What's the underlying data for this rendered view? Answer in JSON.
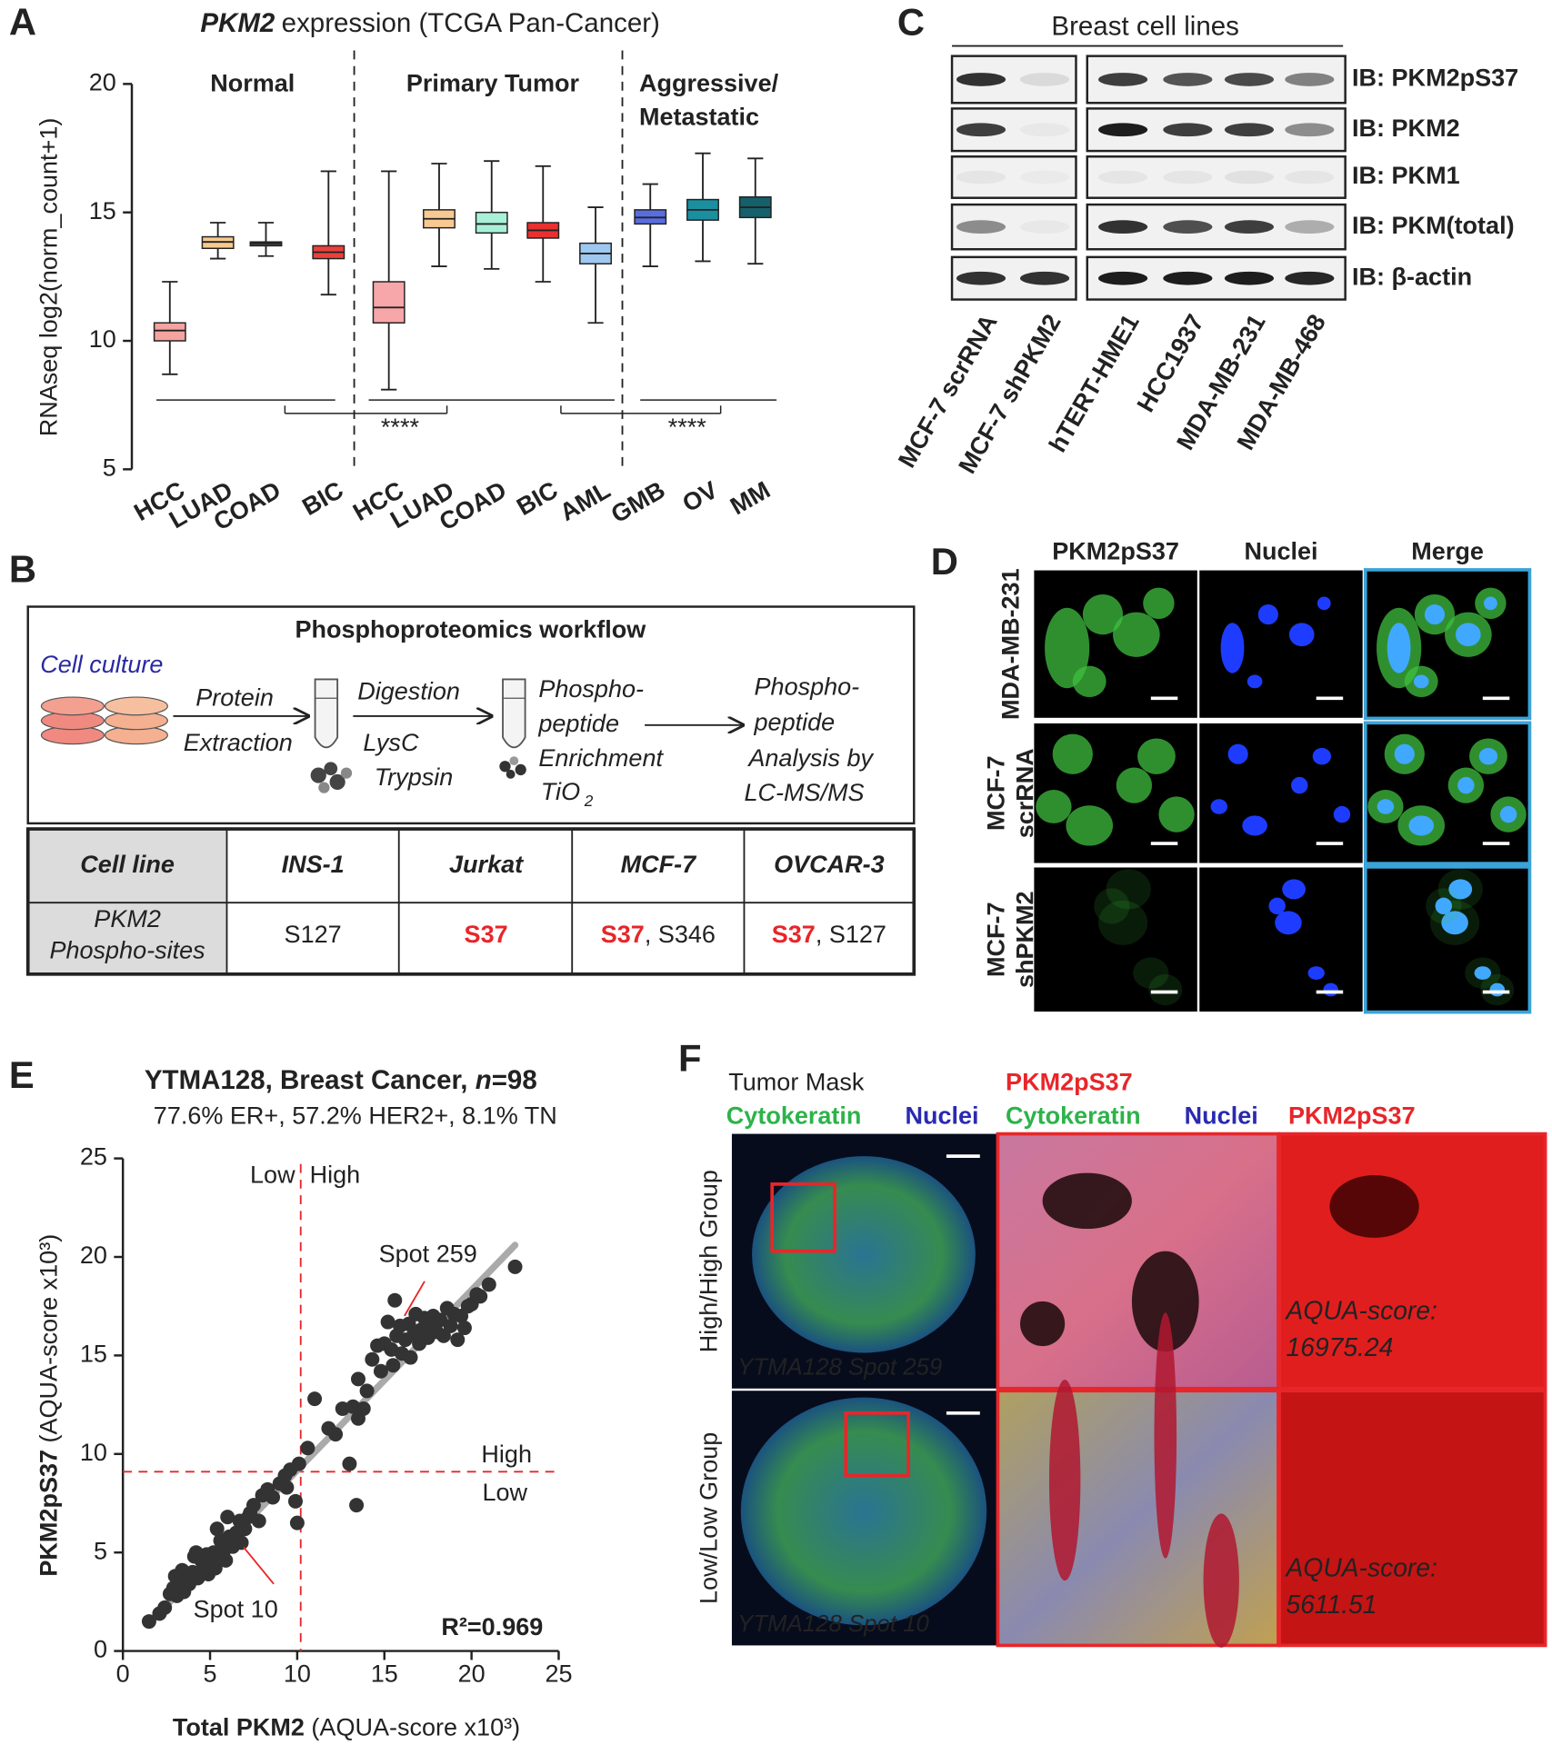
{
  "panel_labels": [
    "A",
    "B",
    "C",
    "D",
    "E",
    "F"
  ],
  "chart_data": [
    {
      "type": "box",
      "title_gene": "PKM2",
      "title": "expression (TCGA Pan-Cancer)",
      "ylabel": "RNAseq log2(norm_count+1)",
      "categories": [
        "HCC",
        "LUAD",
        "COAD",
        "BIC",
        "HCC",
        "LUAD",
        "COAD",
        "BIC",
        "AML",
        "GMB",
        "OV",
        "MM"
      ],
      "groups": [
        [
          "Normal"
        ],
        [
          "Primary Tumor"
        ],
        [
          "Aggressive/",
          "Metastatic"
        ]
      ],
      "min": [
        8.7,
        13.2,
        13.3,
        11.8,
        8.1,
        12.9,
        12.8,
        12.3,
        10.7,
        12.9,
        13.1,
        13.0
      ],
      "q1": [
        10.0,
        13.6,
        13.7,
        13.2,
        10.7,
        14.4,
        14.2,
        14.0,
        13.0,
        14.55,
        14.7,
        14.8
      ],
      "median": [
        10.4,
        13.85,
        13.8,
        13.45,
        11.3,
        14.75,
        14.55,
        14.3,
        13.4,
        14.8,
        15.1,
        15.2
      ],
      "q3": [
        10.7,
        14.05,
        13.85,
        13.7,
        12.3,
        15.1,
        15.0,
        14.6,
        13.8,
        15.1,
        15.5,
        15.6
      ],
      "max": [
        12.3,
        14.6,
        14.6,
        16.6,
        16.6,
        16.9,
        17.0,
        16.8,
        15.2,
        16.1,
        17.3,
        17.1
      ],
      "colors": [
        "#f4a3a0",
        "#f6c98e",
        "#444444",
        "#e8413c",
        "#f7a6aa",
        "#f8c990",
        "#a9f0d8",
        "#e8312f",
        "#9ec8f0",
        "#5a6de0",
        "#1a8fa0",
        "#15606a"
      ],
      "significance": [
        "****",
        "****"
      ],
      "ylim": [
        5,
        20
      ],
      "yticks": [
        5,
        10,
        15,
        20
      ]
    },
    {
      "type": "scatter",
      "title_parts": [
        "YTMA128, Breast Cancer, ",
        "n",
        "=98"
      ],
      "subtitle": "77.6% ER+, 57.2% HER2+, 8.1% TN",
      "xlabel": [
        "Total PKM2",
        " (AQUA-score x10³)"
      ],
      "ylabel": [
        "PKM2pS37",
        " (AQUA-score x10³)"
      ],
      "x": [
        1.5,
        2.4,
        2.7,
        2.9,
        3.1,
        3.3,
        3.5,
        3.6,
        3.8,
        4.0,
        4.1,
        4.3,
        4.5,
        4.6,
        4.8,
        4.9,
        5.0,
        5.2,
        5.3,
        5.5,
        5.6,
        5.8,
        5.9,
        6.1,
        6.3,
        6.5,
        6.7,
        6.8,
        7.0,
        7.2,
        7.5,
        7.8,
        4.2,
        3.4,
        5.4,
        6.0,
        8.3,
        8.6,
        9.0,
        9.3,
        9.6,
        9.9,
        10.1,
        10.0,
        10.6,
        11.0,
        11.8,
        12.2,
        12.6,
        13.2,
        13.4,
        13.0,
        13.5,
        13.5,
        13.8,
        14.3,
        14.6,
        14.8,
        15.0,
        15.2,
        15.4,
        15.5,
        15.7,
        15.9,
        16.0,
        16.2,
        16.4,
        16.5,
        16.7,
        16.8,
        17.0,
        17.1,
        17.3,
        17.5,
        17.6,
        17.8,
        18.0,
        18.2,
        18.4,
        18.6,
        18.8,
        19.0,
        19.2,
        19.4,
        19.6,
        20.0,
        20.3,
        20.5,
        21.0,
        22.5,
        15.6,
        2.1,
        3.0,
        7.3,
        8.0,
        9.4,
        14.0,
        19.8
      ],
      "values": [
        1.5,
        2.2,
        2.9,
        3.2,
        2.8,
        3.5,
        3.0,
        3.9,
        3.4,
        4.0,
        4.8,
        3.7,
        4.6,
        4.2,
        4.9,
        3.9,
        4.5,
        5.0,
        4.2,
        4.9,
        5.6,
        5.1,
        4.6,
        5.8,
        5.3,
        6.0,
        6.6,
        5.5,
        6.2,
        6.8,
        7.4,
        6.6,
        5.0,
        4.1,
        6.2,
        6.8,
        8.2,
        7.8,
        8.5,
        8.9,
        9.2,
        7.6,
        9.5,
        6.5,
        10.3,
        12.8,
        11.3,
        11.0,
        12.3,
        12.4,
        7.4,
        9.5,
        13.8,
        11.8,
        12.3,
        14.8,
        15.5,
        14.2,
        15.6,
        16.7,
        15.3,
        14.5,
        16.0,
        16.5,
        15.1,
        15.8,
        16.6,
        14.9,
        16.1,
        17.1,
        15.6,
        16.3,
        16.9,
        15.9,
        16.6,
        17.0,
        16.2,
        16.8,
        16.0,
        17.4,
        16.5,
        17.1,
        15.8,
        17.0,
        16.4,
        17.6,
        18.1,
        18.0,
        18.6,
        19.5,
        17.8,
        1.9,
        3.8,
        7.0,
        7.9,
        8.3,
        13.2,
        17.5
      ],
      "color": "#333333",
      "trend": {
        "x": [
          1.5,
          22.5
        ],
        "y": [
          1.4,
          20.6
        ],
        "color": "#aaaaaa"
      },
      "thresholds": {
        "x": 10.2,
        "y": 9.1,
        "color": "#e8262a"
      },
      "threshold_labels": {
        "x_low": "Low",
        "x_high": "High",
        "y_high": "High",
        "y_low": "Low"
      },
      "annotations": [
        "Spot 259",
        "Spot 10"
      ],
      "r2": "R²=0.969",
      "xlim": [
        0,
        25
      ],
      "xticks": [
        0,
        5,
        10,
        15,
        20,
        25
      ],
      "ylim": [
        0,
        25
      ],
      "yticks": [
        0,
        5,
        10,
        15,
        20,
        25
      ]
    }
  ],
  "workflow": {
    "title": "Phosphoproteomics workflow",
    "cell_culture": "Cell culture",
    "extraction": [
      "Protein",
      "Extraction"
    ],
    "digestion": [
      "Digestion",
      "LysC",
      "Trypsin"
    ],
    "enrichment": [
      "Phospho-",
      "peptide",
      "Enrichment"
    ],
    "tio": "TiO",
    "tio_sub": "2",
    "analysis": [
      "Phospho-",
      "peptide",
      "Analysis by",
      "LC-MS/MS"
    ]
  },
  "table": {
    "header": [
      "Cell line",
      "INS-1",
      "Jurkat",
      "MCF-7",
      "OVCAR-3"
    ],
    "row_label": [
      "PKM2",
      "Phospho-sites"
    ],
    "cells": [
      [
        {
          "text": "S127"
        }
      ],
      [
        {
          "text": "S37",
          "highlight": true
        }
      ],
      [
        {
          "text": "S37",
          "highlight": true
        },
        {
          "text": ", S346"
        }
      ],
      [
        {
          "text": "S37",
          "highlight": true
        },
        {
          "text": ", S127"
        }
      ]
    ],
    "highlight_color": "#e8262a"
  },
  "blot": {
    "title": "Breast cell lines",
    "rows": [
      "IB: PKM2pS37",
      "IB: PKM2",
      "IB: PKM1",
      "IB: PKM(total)",
      "IB: β-actin"
    ],
    "lanes": [
      "MCF-7 scrRNA",
      "MCF-7 shPKM2",
      "hTERT-HME1",
      "HCC1937",
      "MDA-MB-231",
      "MDA-MB-468"
    ]
  },
  "imaging": {
    "columns": [
      {
        "text": "PKM2pS37",
        "color": "#2db34a"
      },
      {
        "text": "Nuclei",
        "color": "#2a2ab0"
      },
      {
        "text": "Merge",
        "color": "#3aa3d8"
      }
    ],
    "rows": [
      [
        "MDA-MB-231"
      ],
      [
        "MCF-7",
        "scrRNA"
      ],
      [
        "MCF-7",
        "shPKM2"
      ]
    ]
  },
  "tissue": {
    "col1": [
      "Tumor Mask",
      "Cytokeratin",
      "Nuclei"
    ],
    "col2": [
      "PKM2pS37",
      "Cytokeratin",
      "Nuclei"
    ],
    "col3": "PKM2pS37",
    "rows": [
      "High/High Group",
      "Low/Low Group"
    ],
    "spots": [
      "YTMA128 Spot 259",
      "YTMA128 Spot 10"
    ],
    "score_label": "AQUA-score:",
    "scores": [
      "16975.24",
      "5611.51"
    ]
  }
}
